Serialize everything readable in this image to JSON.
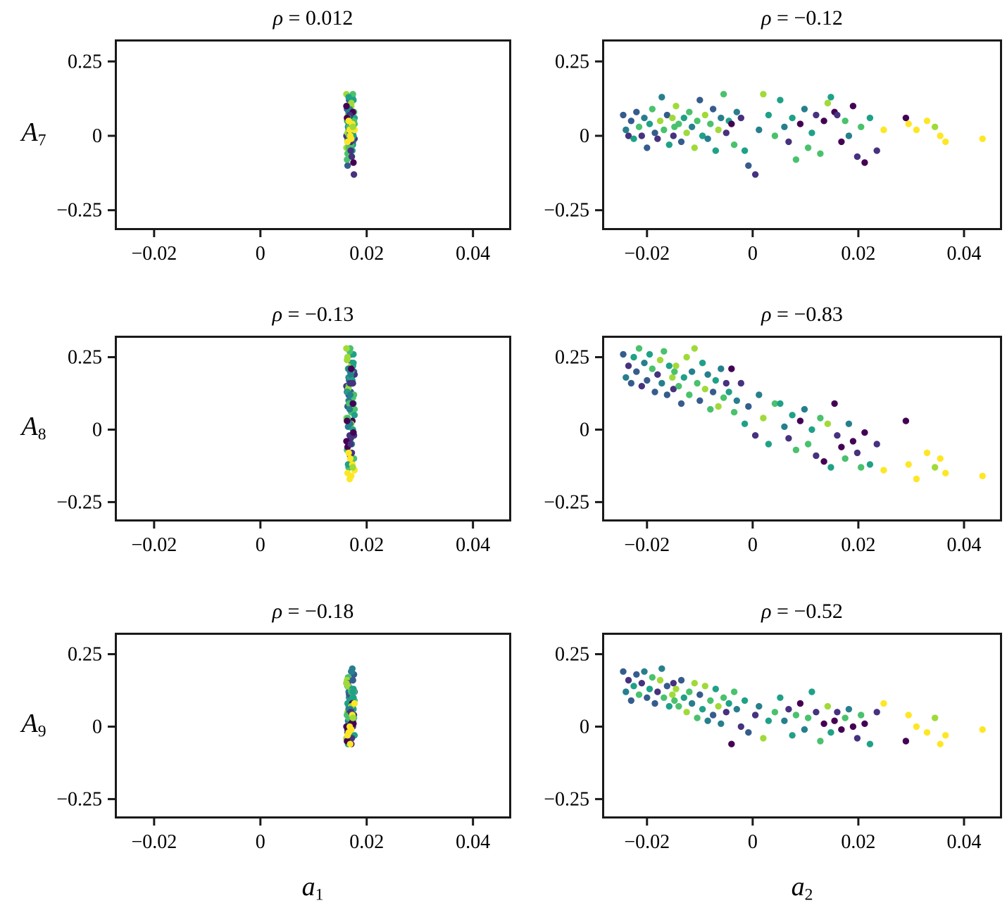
{
  "chart_data": {
    "type": "scatter",
    "grid": "3 rows (A7, A8, A9) by 2 cols (a1, a2), shared sample set, viridis colors",
    "correlations": [
      0.012,
      -0.12,
      -0.13,
      -0.83,
      -0.18,
      -0.52
    ],
    "panels": [
      {
        "id": "A7-vs-a1",
        "row": 0,
        "col": 0,
        "title_symbol": "ρ",
        "title_rest": " = 0.012"
      },
      {
        "id": "A7-vs-a2",
        "row": 0,
        "col": 1,
        "title_symbol": "ρ",
        "title_rest": " = −0.12"
      },
      {
        "id": "A8-vs-a1",
        "row": 1,
        "col": 0,
        "title_symbol": "ρ",
        "title_rest": " = −0.13"
      },
      {
        "id": "A8-vs-a2",
        "row": 1,
        "col": 1,
        "title_symbol": "ρ",
        "title_rest": " = −0.83"
      },
      {
        "id": "A9-vs-a1",
        "row": 2,
        "col": 0,
        "title_symbol": "ρ",
        "title_rest": " = −0.18"
      },
      {
        "id": "A9-vs-a2",
        "row": 2,
        "col": 1,
        "title_symbol": "ρ",
        "title_rest": " = −0.52"
      }
    ],
    "rows": [
      {
        "letter": "A",
        "sub": "7",
        "y_key": "A7"
      },
      {
        "letter": "A",
        "sub": "8",
        "y_key": "A8"
      },
      {
        "letter": "A",
        "sub": "9",
        "y_key": "A9"
      }
    ],
    "cols": [
      {
        "letter": "a",
        "sub": "1",
        "x_key": "a1",
        "xlim": [
          -0.0274,
          0.0472
        ]
      },
      {
        "letter": "a",
        "sub": "2",
        "x_key": "a2",
        "xlim": [
          -0.0285,
          0.0472
        ]
      }
    ],
    "ylim": [
      -0.317,
      0.324
    ],
    "x_ticks": {
      "values": [
        -0.02,
        0,
        0.02,
        0.04
      ],
      "labels": [
        "−0.02",
        "0",
        "0.02",
        "0.04"
      ]
    },
    "y_ticks": {
      "values": [
        0.25,
        0,
        -0.25
      ],
      "labels": [
        "0.25",
        "0",
        "−0.25"
      ]
    },
    "palette": [
      "#440154",
      "#46327e",
      "#365c8d",
      "#277f8e",
      "#1fa187",
      "#4ac16d",
      "#a0da39",
      "#fde725"
    ],
    "samples": {
      "a1": [
        0.0171,
        0.0166,
        0.0174,
        0.0168,
        0.0164,
        0.0176,
        0.0169,
        0.0162,
        0.0172,
        0.0167,
        0.0175,
        0.0165,
        0.017,
        0.0177,
        0.0163,
        0.0173,
        0.0168,
        0.0166,
        0.0174,
        0.0169,
        0.0164,
        0.0171,
        0.0171,
        0.0166,
        0.0174,
        0.0168,
        0.0164,
        0.0176,
        0.0169,
        0.0162,
        0.0172,
        0.0167,
        0.0175,
        0.0165,
        0.017,
        0.0177,
        0.0163,
        0.0173,
        0.0168,
        0.0166,
        0.0174,
        0.0169,
        0.0164,
        0.0171,
        0.0171,
        0.0166,
        0.0174,
        0.0168,
        0.0164,
        0.0176,
        0.0169,
        0.0162,
        0.0172,
        0.0167,
        0.0175,
        0.0165,
        0.017,
        0.0177,
        0.0163,
        0.0173,
        0.0168,
        0.0166,
        0.0174,
        0.0169,
        0.0164,
        0.0171,
        0.0171,
        0.0166,
        0.0174,
        0.0168,
        0.0164,
        0.0176,
        0.0169,
        0.0162,
        0.0172,
        0.0167,
        0.0175,
        0.0165,
        0.017,
        0.0177,
        0.0163,
        0.0173,
        0.0168,
        0.0166,
        0.0174,
        0.0169,
        0.0164,
        0.0171
      ],
      "a2": [
        -0.0245,
        -0.024,
        -0.0235,
        -0.023,
        -0.0225,
        -0.022,
        -0.0215,
        -0.021,
        -0.0205,
        -0.02,
        -0.0195,
        -0.019,
        -0.0185,
        -0.018,
        -0.0175,
        -0.0172,
        -0.0168,
        -0.0162,
        -0.0158,
        -0.0152,
        -0.015,
        -0.0148,
        -0.0145,
        -0.014,
        -0.0135,
        -0.013,
        -0.0125,
        -0.012,
        -0.0115,
        -0.011,
        -0.0105,
        -0.01,
        -0.0095,
        -0.009,
        -0.0085,
        -0.008,
        -0.0075,
        -0.007,
        -0.0065,
        -0.006,
        -0.0055,
        -0.005,
        -0.0045,
        -0.004,
        -0.0035,
        -0.003,
        -0.0022,
        -0.0015,
        -0.0008,
        0.0005,
        0.0012,
        0.002,
        0.003,
        0.0042,
        0.0052,
        0.006,
        0.0068,
        0.0075,
        0.0082,
        0.009,
        0.0098,
        0.0105,
        0.0112,
        0.012,
        0.0128,
        0.0135,
        0.0142,
        0.0148,
        0.0155,
        0.016,
        0.0168,
        0.0175,
        0.0182,
        0.019,
        0.0198,
        0.0205,
        0.0212,
        0.0222,
        0.0235,
        0.0248,
        0.029,
        0.0295,
        0.031,
        0.033,
        0.0345,
        0.0355,
        0.0365,
        0.0435
      ],
      "A7": [
        0.07,
        0.02,
        0.0,
        0.05,
        -0.01,
        0.08,
        0.03,
        0.0,
        0.06,
        -0.04,
        0.04,
        0.09,
        0.01,
        -0.01,
        0.05,
        0.13,
        0.02,
        0.07,
        -0.03,
        0.06,
        0.0,
        0.03,
        0.1,
        0.04,
        -0.02,
        0.06,
        0.01,
        0.08,
        0.03,
        -0.04,
        0.05,
        0.12,
        0.0,
        0.07,
        -0.01,
        0.04,
        0.09,
        -0.05,
        0.02,
        0.06,
        0.14,
        0.01,
        0.05,
        0.04,
        -0.03,
        0.08,
        0.06,
        -0.05,
        -0.1,
        -0.13,
        0.02,
        0.14,
        0.07,
        0.0,
        0.12,
        0.03,
        -0.02,
        0.06,
        -0.08,
        0.04,
        0.09,
        -0.04,
        0.01,
        0.07,
        -0.06,
        0.05,
        0.11,
        0.13,
        0.08,
        0.07,
        -0.02,
        0.05,
        0.0,
        0.1,
        -0.07,
        0.03,
        -0.09,
        0.06,
        -0.05,
        0.02,
        0.06,
        0.04,
        0.02,
        0.05,
        0.03,
        0.0,
        -0.02,
        -0.01
      ],
      "A8": [
        0.26,
        0.18,
        0.22,
        0.16,
        0.25,
        0.2,
        0.28,
        0.15,
        0.23,
        0.17,
        0.26,
        0.21,
        0.13,
        0.19,
        0.24,
        0.16,
        0.27,
        0.12,
        0.22,
        0.18,
        0.14,
        0.2,
        0.22,
        0.15,
        0.09,
        0.18,
        0.25,
        0.12,
        0.2,
        0.28,
        0.16,
        0.1,
        0.23,
        0.14,
        0.19,
        0.07,
        0.13,
        0.17,
        0.08,
        0.21,
        0.11,
        0.16,
        0.13,
        0.21,
        0.06,
        0.1,
        0.16,
        0.02,
        0.08,
        -0.02,
        0.12,
        0.04,
        -0.05,
        0.09,
        0.09,
        0.01,
        -0.03,
        0.05,
        -0.07,
        0.03,
        0.07,
        -0.05,
        0.0,
        -0.09,
        0.04,
        -0.11,
        0.02,
        -0.13,
        0.09,
        -0.02,
        -0.06,
        -0.1,
        0.02,
        -0.04,
        -0.08,
        -0.13,
        -0.01,
        -0.12,
        -0.05,
        -0.14,
        0.03,
        -0.12,
        -0.17,
        -0.08,
        -0.13,
        -0.1,
        -0.15,
        -0.16
      ],
      "A9": [
        0.19,
        0.12,
        0.16,
        0.09,
        0.14,
        0.18,
        0.11,
        0.15,
        0.19,
        0.1,
        0.13,
        0.17,
        0.08,
        0.12,
        0.16,
        0.2,
        0.1,
        0.14,
        0.07,
        0.11,
        0.15,
        0.09,
        0.13,
        0.07,
        0.16,
        0.1,
        0.05,
        0.12,
        0.08,
        0.15,
        0.03,
        0.11,
        0.06,
        0.14,
        0.02,
        0.09,
        0.04,
        0.13,
        0.07,
        0.01,
        0.1,
        0.05,
        0.08,
        -0.06,
        0.12,
        0.06,
        0.0,
        0.09,
        -0.02,
        0.04,
        0.07,
        -0.04,
        0.02,
        0.05,
        0.1,
        0.02,
        0.06,
        -0.03,
        0.04,
        0.08,
        -0.01,
        0.03,
        0.12,
        0.05,
        -0.05,
        0.01,
        0.07,
        -0.02,
        0.02,
        0.05,
        -0.01,
        0.03,
        0.06,
        0.0,
        -0.04,
        0.04,
        0.01,
        -0.06,
        0.05,
        0.08,
        -0.05,
        0.04,
        0.0,
        -0.02,
        0.03,
        -0.06,
        -0.03,
        -0.01
      ],
      "color": [
        2,
        3,
        1,
        2,
        4,
        2,
        5,
        1,
        3,
        2,
        4,
        5,
        2,
        1,
        6,
        3,
        5,
        2,
        4,
        6,
        1,
        5,
        6,
        5,
        2,
        4,
        6,
        5,
        3,
        6,
        5,
        2,
        4,
        6,
        3,
        5,
        2,
        4,
        6,
        3,
        5,
        1,
        4,
        0,
        5,
        3,
        1,
        4,
        2,
        1,
        3,
        6,
        4,
        5,
        4,
        3,
        1,
        4,
        5,
        0,
        3,
        5,
        4,
        1,
        5,
        0,
        6,
        4,
        0,
        1,
        0,
        5,
        3,
        0,
        1,
        5,
        0,
        4,
        1,
        7,
        0,
        7,
        7,
        7,
        6,
        7,
        7,
        7
      ]
    }
  }
}
